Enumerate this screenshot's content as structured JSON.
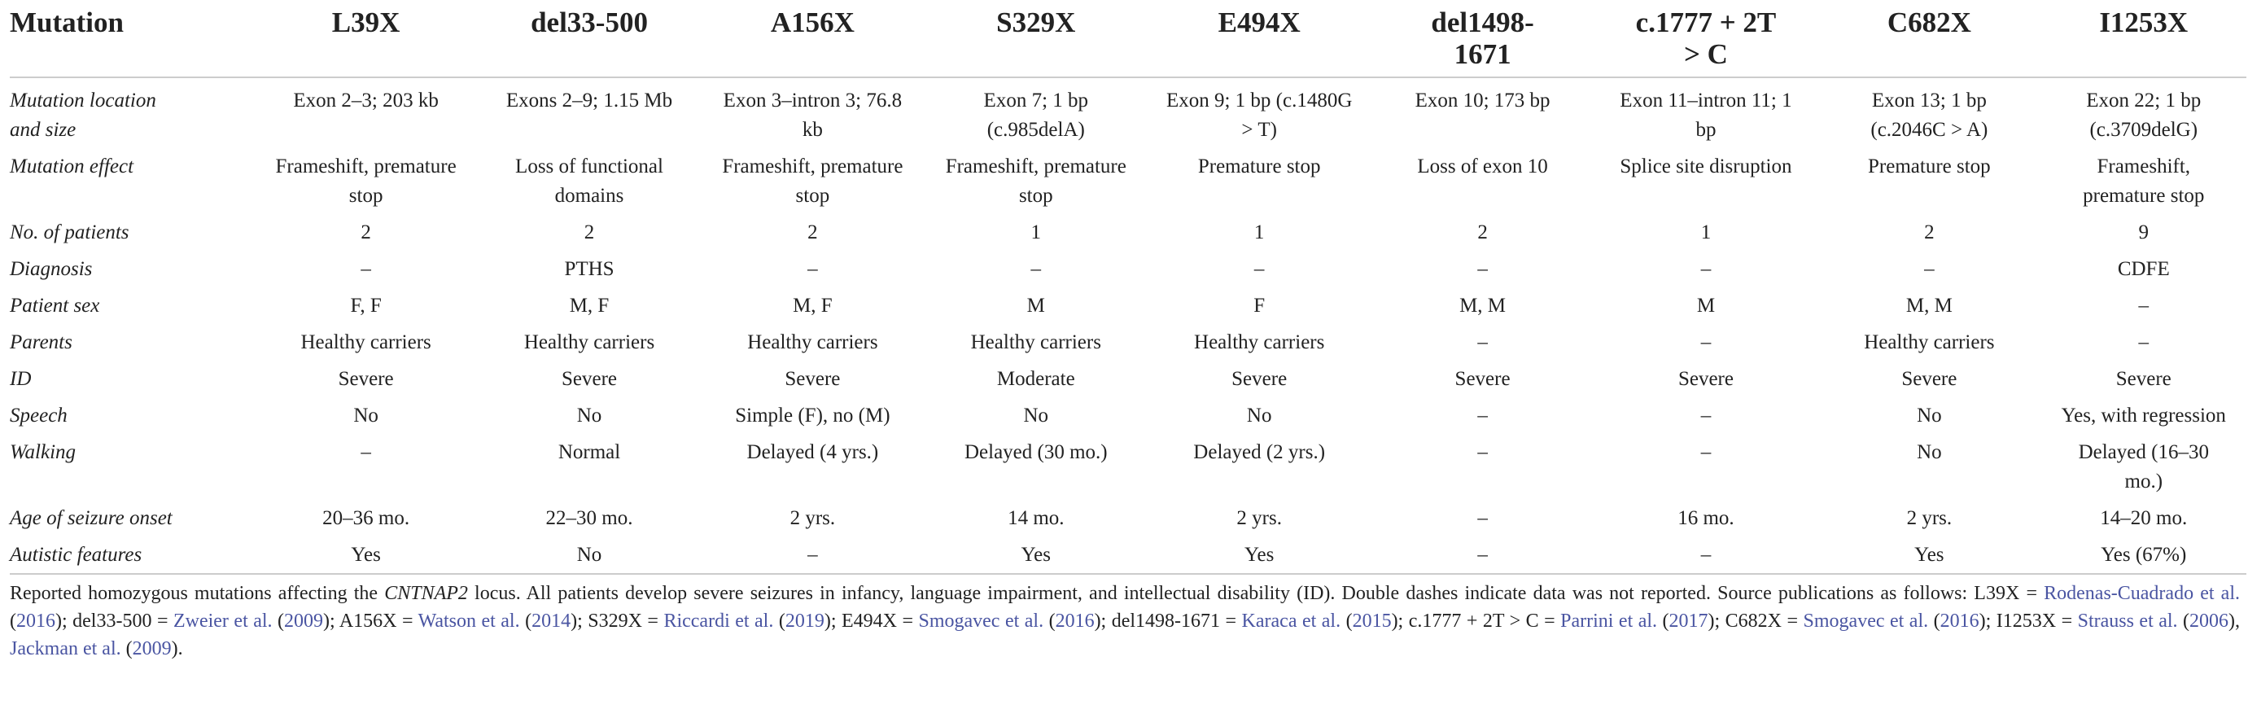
{
  "table": {
    "header": [
      "Mutation",
      "L39X",
      "del33-500",
      "A156X",
      "S329X",
      "E494X",
      "del1498-1671",
      "c.1777 + 2T > C",
      "C682X",
      "I1253X"
    ],
    "rows": [
      [
        "Mutation location and size",
        "Exon 2–3; 203 kb",
        "Exons 2–9; 1.15 Mb",
        "Exon 3–intron 3; 76.8 kb",
        "Exon 7; 1 bp (c.985delA)",
        "Exon 9; 1 bp (c.1480G > T)",
        "Exon 10; 173 bp",
        "Exon 11–intron 11; 1 bp",
        "Exon 13; 1 bp (c.2046C > A)",
        "Exon 22; 1 bp (c.3709delG)"
      ],
      [
        "Mutation effect",
        "Frameshift, premature stop",
        "Loss of functional domains",
        "Frameshift, premature stop",
        "Frameshift, premature stop",
        "Premature stop",
        "Loss of exon 10",
        "Splice site disruption",
        "Premature stop",
        "Frameshift, premature stop"
      ],
      [
        "No. of patients",
        2,
        2,
        2,
        1,
        1,
        2,
        1,
        2,
        9
      ],
      [
        "Diagnosis",
        "–",
        "PTHS",
        "–",
        "–",
        "–",
        "–",
        "–",
        "–",
        "CDFE"
      ],
      [
        "Patient sex",
        "F, F",
        "M, F",
        "M, F",
        "M",
        "F",
        "M, M",
        "M",
        "M, M",
        "–"
      ],
      [
        "Parents",
        "Healthy carriers",
        "Healthy carriers",
        "Healthy carriers",
        "Healthy carriers",
        "Healthy carriers",
        "–",
        "–",
        "Healthy carriers",
        "–"
      ],
      [
        "ID",
        "Severe",
        "Severe",
        "Severe",
        "Moderate",
        "Severe",
        "Severe",
        "Severe",
        "Severe",
        "Severe"
      ],
      [
        "Speech",
        "No",
        "No",
        "Simple (F), no (M)",
        "No",
        "No",
        "–",
        "–",
        "No",
        "Yes, with regression"
      ],
      [
        "Walking",
        "–",
        "Normal",
        "Delayed (4 yrs.)",
        "Delayed (30 mo.)",
        "Delayed (2 yrs.)",
        "–",
        "–",
        "No",
        "Delayed (16–30 mo.)"
      ],
      [
        "Age of seizure onset",
        "20–36 mo.",
        "22–30 mo.",
        "2 yrs.",
        "14 mo.",
        "2 yrs.",
        "–",
        "16 mo.",
        "2 yrs.",
        "14–20 mo."
      ],
      [
        "Autistic features",
        "Yes",
        "No",
        "–",
        "Yes",
        "Yes",
        "–",
        "–",
        "Yes",
        "Yes (67%)"
      ]
    ]
  },
  "caption": [
    {
      "text": "Reported homozygous mutations affecting the ",
      "kind": "plain"
    },
    {
      "text": "CNTNAP2",
      "kind": "italic"
    },
    {
      "text": " locus. All patients develop severe seizures in infancy, language impairment, and intellectual disability (ID). Double dashes indicate data was not reported. Source publications as follows: L39X = ",
      "kind": "plain"
    },
    {
      "text": "Rodenas-Cuadrado et al.",
      "kind": "link"
    },
    {
      "text": " (",
      "kind": "plain"
    },
    {
      "text": "2016",
      "kind": "link"
    },
    {
      "text": "); del33-500 = ",
      "kind": "plain"
    },
    {
      "text": "Zweier et al.",
      "kind": "link"
    },
    {
      "text": " (",
      "kind": "plain"
    },
    {
      "text": "2009",
      "kind": "link"
    },
    {
      "text": "); A156X = ",
      "kind": "plain"
    },
    {
      "text": "Watson et al.",
      "kind": "link"
    },
    {
      "text": " (",
      "kind": "plain"
    },
    {
      "text": "2014",
      "kind": "link"
    },
    {
      "text": "); S329X = ",
      "kind": "plain"
    },
    {
      "text": "Riccardi et al.",
      "kind": "link"
    },
    {
      "text": " (",
      "kind": "plain"
    },
    {
      "text": "2019",
      "kind": "link"
    },
    {
      "text": "); E494X = ",
      "kind": "plain"
    },
    {
      "text": "Smogavec et al.",
      "kind": "link"
    },
    {
      "text": " (",
      "kind": "plain"
    },
    {
      "text": "2016",
      "kind": "link"
    },
    {
      "text": "); del1498-1671 = ",
      "kind": "plain"
    },
    {
      "text": "Karaca et al.",
      "kind": "link"
    },
    {
      "text": " (",
      "kind": "plain"
    },
    {
      "text": "2015",
      "kind": "link"
    },
    {
      "text": "); c.1777 + 2T > C = ",
      "kind": "plain"
    },
    {
      "text": "Parrini et al.",
      "kind": "link"
    },
    {
      "text": " (",
      "kind": "plain"
    },
    {
      "text": "2017",
      "kind": "link"
    },
    {
      "text": "); C682X = ",
      "kind": "plain"
    },
    {
      "text": "Smogavec et al.",
      "kind": "link"
    },
    {
      "text": " (",
      "kind": "plain"
    },
    {
      "text": "2016",
      "kind": "link"
    },
    {
      "text": "); I1253X = ",
      "kind": "plain"
    },
    {
      "text": "Strauss et al.",
      "kind": "link"
    },
    {
      "text": " (",
      "kind": "plain"
    },
    {
      "text": "2006",
      "kind": "link"
    },
    {
      "text": "), ",
      "kind": "plain"
    },
    {
      "text": "Jackman et al.",
      "kind": "link"
    },
    {
      "text": " (",
      "kind": "plain"
    },
    {
      "text": "2009",
      "kind": "link"
    },
    {
      "text": ").",
      "kind": "plain"
    }
  ]
}
